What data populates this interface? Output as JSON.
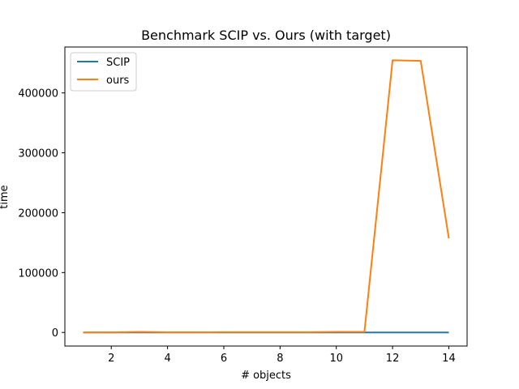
{
  "chart_data": {
    "type": "line",
    "title": "Benchmark SCIP vs. Ours (with target)",
    "xlabel": "# objects",
    "ylabel": "time",
    "x": [
      1,
      2,
      3,
      4,
      5,
      6,
      7,
      8,
      9,
      10,
      11,
      12,
      13,
      14
    ],
    "xlim": [
      0.35,
      14.65
    ],
    "ylim": [
      -22700,
      476700
    ],
    "xticks": [
      2,
      4,
      6,
      8,
      10,
      12,
      14
    ],
    "yticks": [
      0,
      100000,
      200000,
      300000,
      400000
    ],
    "grid": false,
    "legend_position": "upper-left",
    "series": [
      {
        "name": "SCIP",
        "color": "#1f77b4",
        "values": [
          0,
          0,
          0,
          0,
          0,
          0,
          0,
          0,
          0,
          0,
          0,
          0,
          0,
          0
        ]
      },
      {
        "name": "ours",
        "color": "#ff7f0e",
        "values": [
          0,
          200,
          1000,
          300,
          300,
          500,
          500,
          500,
          500,
          1000,
          1000,
          454500,
          453500,
          157000
        ]
      }
    ]
  }
}
